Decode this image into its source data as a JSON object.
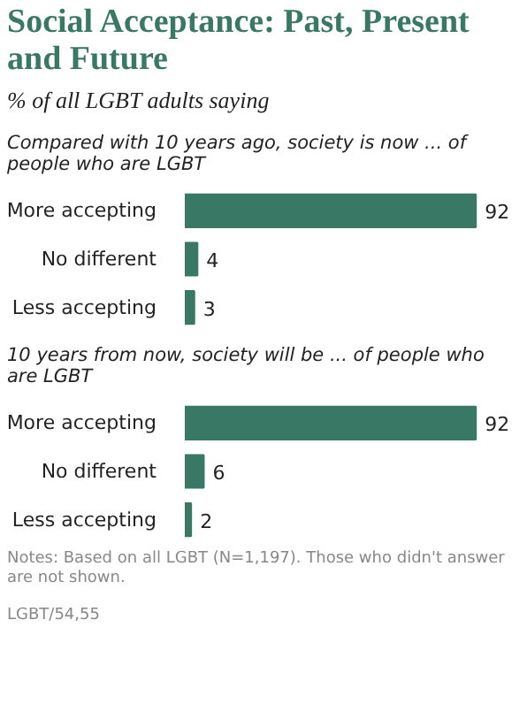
{
  "chart_data": [
    {
      "type": "other",
      "title": "Social Acceptance: Past, Present and Future",
      "subtitle": "% of all LGBT adults saying"
    },
    {
      "type": "bar",
      "orientation": "horizontal",
      "title": "Compared with 10 years ago, society is now ... of people who are LGBT",
      "categories": [
        "More accepting",
        "No different",
        "Less accepting"
      ],
      "values": [
        92,
        4,
        3
      ],
      "color": "#3a7866",
      "data_labels": true
    },
    {
      "type": "bar",
      "orientation": "horizontal",
      "title": "10 years from now, society will be ... of people who are LGBT",
      "categories": [
        "More accepting",
        "No different",
        "Less accepting"
      ],
      "values": [
        92,
        6,
        2
      ],
      "color": "#3a7866",
      "data_labels": true,
      "annotations": [
        "Notes: Based on all LGBT (N=1,197). Those who didn't answer are not shown.",
        "LGBT/54,55"
      ]
    }
  ]
}
